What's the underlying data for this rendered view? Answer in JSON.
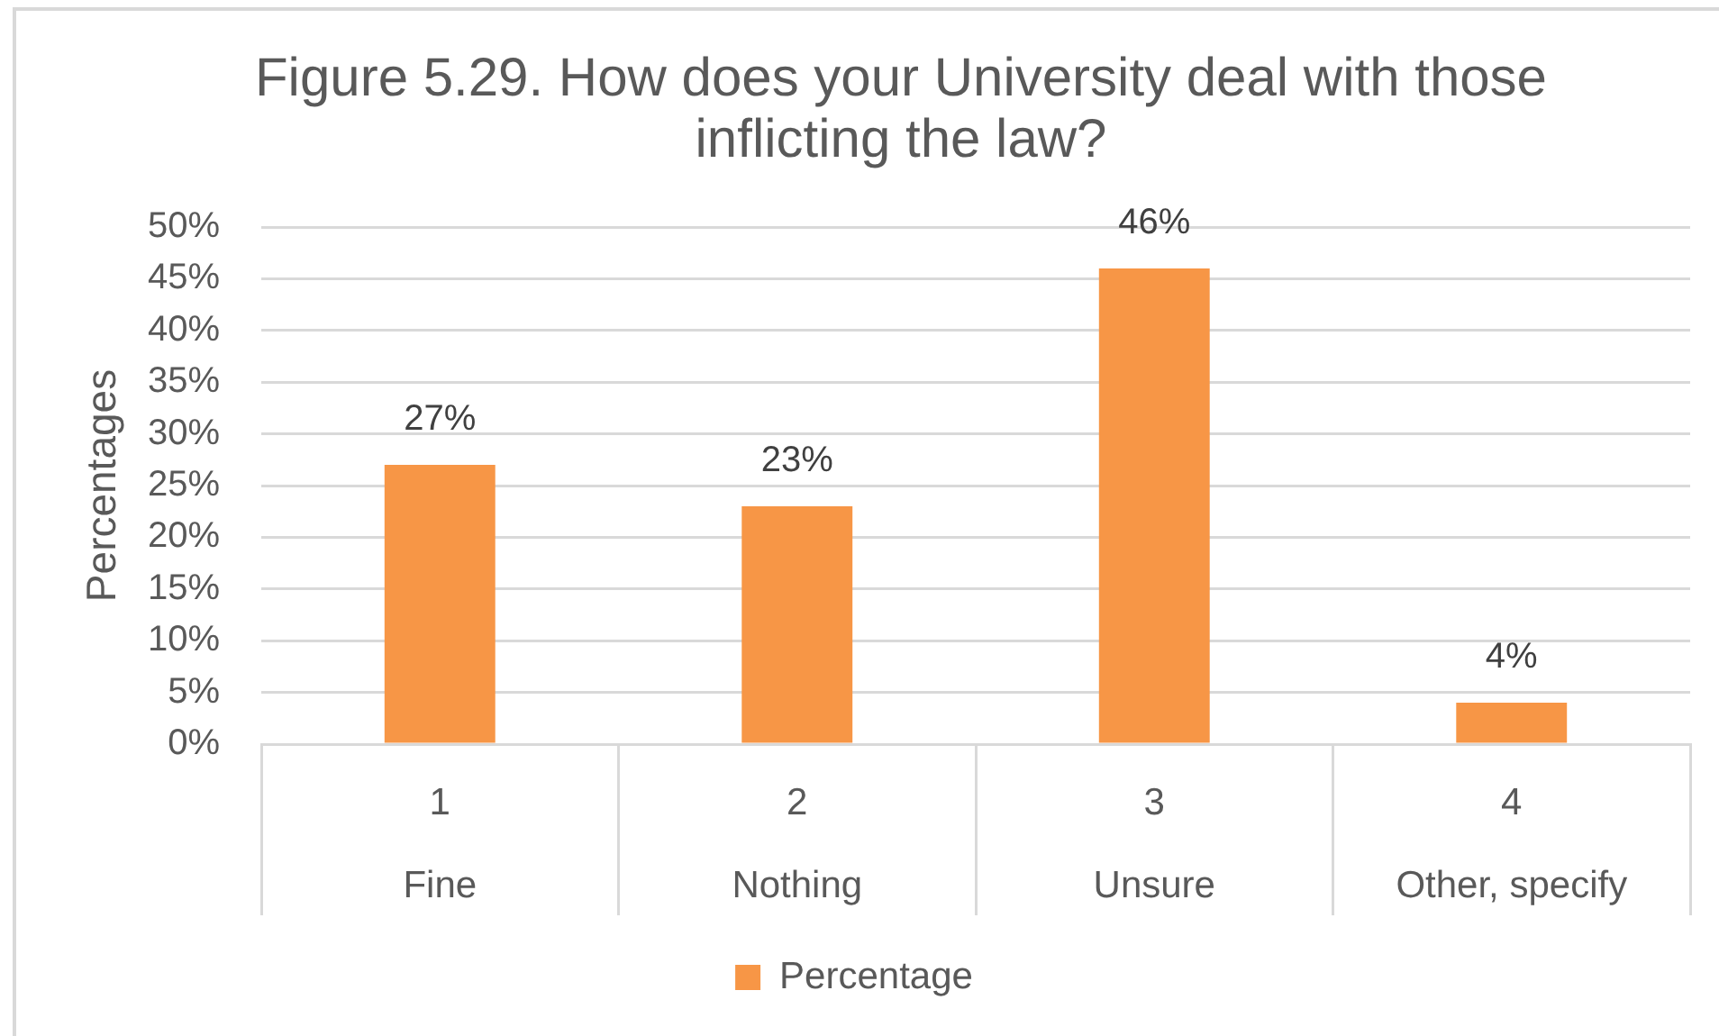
{
  "chart_data": {
    "type": "bar",
    "title": "Figure 5.29. How does your University deal with those inflicting the law?",
    "ylabel": "Percentages",
    "categories": [
      "1\nFine",
      "2\nNothing",
      "3\nUnsure",
      "4\nOther, specify"
    ],
    "series": [
      {
        "name": "Percentage",
        "color": "#f79646",
        "values": [
          27,
          23,
          46,
          4
        ],
        "value_labels": [
          "27%",
          "23%",
          "46%",
          "4%"
        ]
      }
    ],
    "ylim": [
      0,
      50
    ],
    "yticks": [
      {
        "value": 0,
        "label": "0%"
      },
      {
        "value": 5,
        "label": "5%"
      },
      {
        "value": 10,
        "label": "10%"
      },
      {
        "value": 15,
        "label": "15%"
      },
      {
        "value": 20,
        "label": "20%"
      },
      {
        "value": 25,
        "label": "25%"
      },
      {
        "value": 30,
        "label": "30%"
      },
      {
        "value": 35,
        "label": "35%"
      },
      {
        "value": 40,
        "label": "40%"
      },
      {
        "value": 45,
        "label": "45%"
      },
      {
        "value": 50,
        "label": "50%"
      }
    ],
    "grid": "y",
    "legend": "bottom"
  }
}
